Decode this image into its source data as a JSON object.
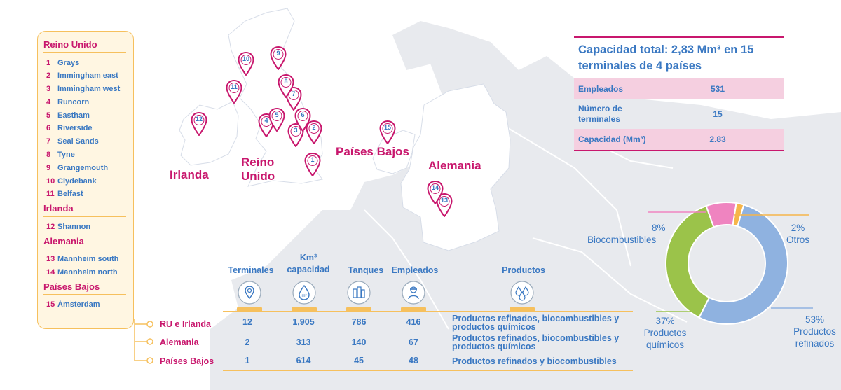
{
  "legend": {
    "groups": [
      {
        "country": "Reino Unido",
        "items": [
          {
            "num": "1",
            "name": "Grays"
          },
          {
            "num": "2",
            "name": "Immingham east"
          },
          {
            "num": "3",
            "name": "Immingham west"
          },
          {
            "num": "4",
            "name": "Runcorn"
          },
          {
            "num": "5",
            "name": "Eastham"
          },
          {
            "num": "6",
            "name": "Riverside"
          },
          {
            "num": "7",
            "name": "Seal Sands"
          },
          {
            "num": "8",
            "name": "Tyne"
          },
          {
            "num": "9",
            "name": "Grangemouth"
          },
          {
            "num": "10",
            "name": "Clydebank"
          },
          {
            "num": "11",
            "name": "Belfast"
          }
        ]
      },
      {
        "country": "Irlanda",
        "items": [
          {
            "num": "12",
            "name": "Shannon"
          }
        ]
      },
      {
        "country": "Alemania",
        "items": [
          {
            "num": "13",
            "name": "Mannheim south"
          },
          {
            "num": "14",
            "name": "Mannheim north"
          }
        ]
      },
      {
        "country": "Países Bajos",
        "items": [
          {
            "num": "15",
            "name": "Ámsterdam"
          }
        ]
      }
    ]
  },
  "map": {
    "labels": {
      "irlanda": "Irlanda",
      "reino_unido_1": "Reino",
      "reino_unido_2": "Unido",
      "paises_bajos": "Países Bajos",
      "alemania": "Alemania"
    },
    "pins": [
      "1",
      "2",
      "3",
      "4",
      "5",
      "6",
      "7",
      "8",
      "9",
      "10",
      "11",
      "12",
      "13",
      "14",
      "15"
    ],
    "pin_color": "#c8176d",
    "highlight_color": "#ffffff",
    "background_color": "#e8eaee"
  },
  "summary": {
    "title": "Capacidad total: 2,83 Mm³ en 15 terminales de 4 países",
    "rows": [
      {
        "label": "Empleados",
        "value": "531"
      },
      {
        "label": "Número de terminales",
        "value": "15"
      },
      {
        "label": "Capacidad (Mm³)",
        "value": "2.83"
      }
    ]
  },
  "table": {
    "headers": {
      "terminales": "Terminales",
      "capacidad_1": "Km³",
      "capacidad_2": "capacidad",
      "tanques": "Tanques",
      "empleados": "Empleados",
      "productos": "Productos"
    },
    "icons": [
      "location-pin-icon",
      "drop-icon",
      "tank-icon",
      "worker-icon",
      "drops-icon"
    ],
    "rows": [
      {
        "country": "RU e Irlanda",
        "terminales": "12",
        "capacidad": "1,905",
        "tanques": "786",
        "empleados": "416",
        "productos_1": "Productos refinados, biocombustibles y",
        "productos_2": "productos químicos"
      },
      {
        "country": "Alemania",
        "terminales": "2",
        "capacidad": "313",
        "tanques": "140",
        "empleados": "67",
        "productos_1": "Productos refinados, biocombustibles y",
        "productos_2": "productos químicos"
      },
      {
        "country": "Países Bajos",
        "terminales": "1",
        "capacidad": "614",
        "tanques": "45",
        "empleados": "48",
        "productos_1": "Productos refinados y biocombustibles",
        "productos_2": ""
      }
    ]
  },
  "chart_data": {
    "type": "pie",
    "donut": true,
    "slices": [
      {
        "label": "Productos refinados",
        "value": 53,
        "pct_label": "53%",
        "color": "#8fb2e0"
      },
      {
        "label": "Productos químicos",
        "value": 37,
        "pct_label": "37%",
        "color": "#9bc34a"
      },
      {
        "label": "Biocombustibles",
        "value": 8,
        "pct_label": "8%",
        "color": "#ef84c0"
      },
      {
        "label": "Otros",
        "value": 2,
        "pct_label": "2%",
        "color": "#f6b54a"
      }
    ]
  }
}
